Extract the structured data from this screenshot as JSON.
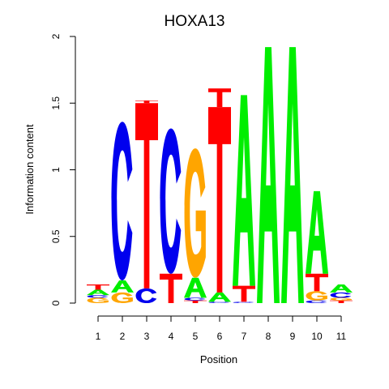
{
  "chart_data": {
    "type": "sequence-logo",
    "title": "HOXA13",
    "xlabel": "Position",
    "ylabel": "Information content",
    "ylim": [
      0,
      2
    ],
    "yticks": [
      "0",
      "0.5",
      "1",
      "1.5",
      "2"
    ],
    "positions": [
      "1",
      "2",
      "3",
      "4",
      "5",
      "6",
      "7",
      "8",
      "9",
      "10",
      "11"
    ],
    "colors": {
      "A": "#00ee00",
      "C": "#0000ee",
      "G": "#ffa500",
      "T": "#ff0000"
    },
    "columns": [
      [
        {
          "letter": "G",
          "height": 0.04
        },
        {
          "letter": "C",
          "height": 0.02
        },
        {
          "letter": "A",
          "height": 0.04
        },
        {
          "letter": "T",
          "height": 0.04
        }
      ],
      [
        {
          "letter": "G",
          "height": 0.08
        },
        {
          "letter": "A",
          "height": 0.09
        },
        {
          "letter": "C",
          "height": 1.19
        }
      ],
      [
        {
          "letter": "C",
          "height": 0.11
        },
        {
          "letter": "T",
          "height": 1.39
        },
        {
          "letter": "T",
          "height": 0.02
        }
      ],
      [
        {
          "letter": "T",
          "height": 0.22
        },
        {
          "letter": "C",
          "height": 1.09
        }
      ],
      [
        {
          "letter": "T",
          "height": 0.02
        },
        {
          "letter": "C",
          "height": 0.02
        },
        {
          "letter": "A",
          "height": 0.15
        },
        {
          "letter": "G",
          "height": 0.97
        }
      ],
      [
        {
          "letter": "C",
          "height": 0.01
        },
        {
          "letter": "A",
          "height": 0.07
        },
        {
          "letter": "T",
          "height": 1.39
        },
        {
          "letter": "T",
          "height": 0.14
        }
      ],
      [
        {
          "letter": "C",
          "height": 0.01
        },
        {
          "letter": "T",
          "height": 0.12
        },
        {
          "letter": "A",
          "height": 1.43
        }
      ],
      [
        {
          "letter": "A",
          "height": 1.92
        }
      ],
      [
        {
          "letter": "A",
          "height": 1.92
        }
      ],
      [
        {
          "letter": "C",
          "height": 0.02
        },
        {
          "letter": "G",
          "height": 0.07
        },
        {
          "letter": "T",
          "height": 0.13
        },
        {
          "letter": "A",
          "height": 0.62
        }
      ],
      [
        {
          "letter": "T",
          "height": 0.02
        },
        {
          "letter": "G",
          "height": 0.02
        },
        {
          "letter": "C",
          "height": 0.04
        },
        {
          "letter": "A",
          "height": 0.06
        }
      ]
    ]
  }
}
